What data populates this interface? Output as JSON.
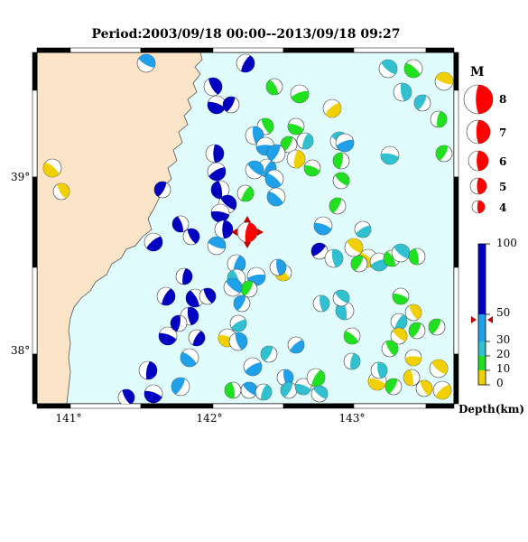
{
  "title": "Period:2003/09/18 00:00--2013/09/18 09:27",
  "axes": {
    "x_ticks": [
      "141°",
      "142°",
      "143°"
    ],
    "y_ticks": [
      "39°",
      "38°"
    ]
  },
  "legend": {
    "magnitude_title": "M",
    "magnitudes": [
      "8",
      "7",
      "6",
      "5",
      "4"
    ],
    "depth_ticks": [
      "100",
      "50",
      "30",
      "20",
      "10",
      "0"
    ],
    "depth_title": "Depth(km)"
  },
  "colors": {
    "land": "#fbe4c8",
    "sea": "#e0fcfc",
    "deep": "#0000c0",
    "mid": "#20a0e8",
    "shallow_mid": "#30c0d0",
    "shallow": "#20e020",
    "surface": "#f0d000",
    "highlight": "#ff0000"
  },
  "highlight_event": {
    "marker": "red-triangle-icon"
  }
}
